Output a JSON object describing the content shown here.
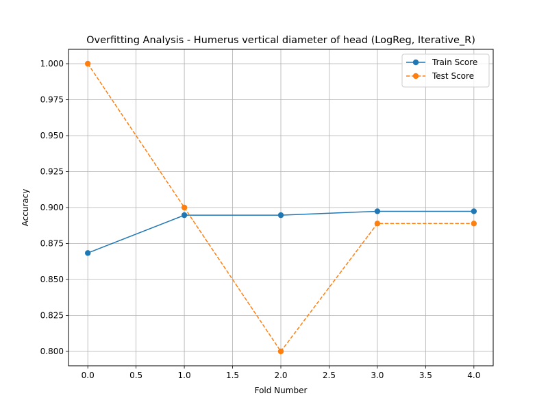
{
  "chart_data": {
    "type": "line",
    "title": "Overfitting Analysis - Humerus vertical diameter of head (LogReg, Iterative_R)",
    "xlabel": "Fold Number",
    "ylabel": "Accuracy",
    "x": [
      0,
      1,
      2,
      3,
      4
    ],
    "xlim": [
      -0.2,
      4.2
    ],
    "ylim": [
      0.79,
      1.01
    ],
    "xticks": [
      0.0,
      0.5,
      1.0,
      1.5,
      2.0,
      2.5,
      3.0,
      3.5,
      4.0
    ],
    "xtick_labels": [
      "0.0",
      "0.5",
      "1.0",
      "1.5",
      "2.0",
      "2.5",
      "3.0",
      "3.5",
      "4.0"
    ],
    "yticks": [
      0.8,
      0.825,
      0.85,
      0.875,
      0.9,
      0.925,
      0.95,
      0.975,
      1.0
    ],
    "ytick_labels": [
      "0.800",
      "0.825",
      "0.850",
      "0.875",
      "0.900",
      "0.925",
      "0.950",
      "0.975",
      "1.000"
    ],
    "grid": true,
    "legend_position": "top-right",
    "series": [
      {
        "name": "Train Score",
        "values": [
          0.8684,
          0.8947,
          0.8947,
          0.8974,
          0.8974
        ],
        "color": "#1f77b4",
        "line_style": "solid",
        "marker": "circle"
      },
      {
        "name": "Test Score",
        "values": [
          1.0,
          0.9,
          0.8,
          0.8889,
          0.8889
        ],
        "color": "#ff7f0e",
        "line_style": "dashed",
        "marker": "circle"
      }
    ]
  }
}
